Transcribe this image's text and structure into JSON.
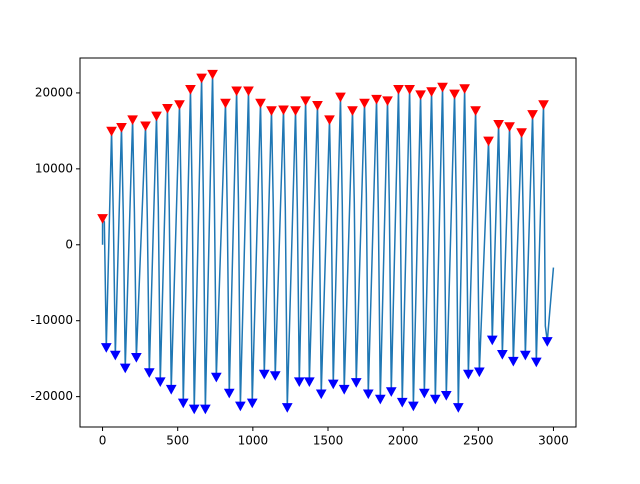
{
  "chart_data": {
    "type": "line",
    "xlim": [
      -150,
      3150
    ],
    "ylim": [
      -24000,
      24600
    ],
    "xticks": [
      0,
      500,
      1000,
      1500,
      2000,
      2500,
      3000
    ],
    "yticks": [
      -20000,
      -10000,
      0,
      10000,
      20000
    ],
    "series": [
      {
        "type": "line",
        "color": "#1f77b4",
        "x": [
          0,
          0,
          12,
          25,
          60,
          72,
          85,
          126,
          138,
          151,
          200,
          212,
          225,
          286,
          298,
          311,
          359,
          371,
          384,
          432,
          444,
          457,
          512,
          524,
          537,
          585,
          597,
          610,
          659,
          671,
          684,
          732,
          744,
          757,
          818,
          830,
          843,
          892,
          904,
          917,
          971,
          983,
          996,
          1051,
          1063,
          1076,
          1124,
          1136,
          1149,
          1204,
          1216,
          1229,
          1284,
          1296,
          1309,
          1351,
          1363,
          1376,
          1430,
          1442,
          1455,
          1510,
          1522,
          1535,
          1583,
          1595,
          1608,
          1663,
          1675,
          1688,
          1743,
          1755,
          1768,
          1823,
          1835,
          1848,
          1896,
          1908,
          1921,
          1969,
          1981,
          1994,
          2043,
          2055,
          2068,
          2116,
          2128,
          2141,
          2189,
          2201,
          2214,
          2262,
          2274,
          2287,
          2342,
          2354,
          2367,
          2409,
          2421,
          2434,
          2482,
          2494,
          2507,
          2568,
          2580,
          2593,
          2635,
          2647,
          2660,
          2708,
          2720,
          2733,
          2788,
          2800,
          2813,
          2861,
          2873,
          2886,
          2934,
          2946,
          2959,
          3000
        ],
        "values": [
          0,
          3500,
          3000,
          -13500,
          15000,
          3500,
          -14500,
          15500,
          4000,
          -16200,
          16500,
          4300,
          -14800,
          15700,
          3300,
          -16800,
          17000,
          5000,
          -18000,
          18000,
          4500,
          -19000,
          18500,
          5000,
          -20800,
          20500,
          5500,
          -21600,
          22000,
          5800,
          -21600,
          22500,
          6000,
          -17400,
          18700,
          4200,
          -19500,
          20300,
          6000,
          -21200,
          20300,
          4200,
          -20800,
          18700,
          5500,
          -17000,
          17700,
          5000,
          -17200,
          17800,
          4800,
          -21400,
          17700,
          4700,
          -18000,
          19000,
          5000,
          -18000,
          18400,
          4700,
          -19600,
          16500,
          4600,
          -18300,
          19500,
          5300,
          -19000,
          17700,
          5500,
          -18100,
          18700,
          6800,
          -19600,
          19200,
          4300,
          -20300,
          19000,
          5500,
          -19300,
          20500,
          5000,
          -20700,
          20500,
          4800,
          -21200,
          19800,
          5000,
          -19500,
          20200,
          6000,
          -20300,
          20800,
          4800,
          -19800,
          19900,
          5000,
          -21400,
          20600,
          4500,
          -17000,
          17700,
          4200,
          -16700,
          13700,
          3500,
          -12500,
          15900,
          4000,
          -14400,
          15600,
          3000,
          -15300,
          14800,
          2500,
          -14500,
          17200,
          4600,
          -15400,
          18500,
          -10700,
          -12700,
          -3000
        ]
      },
      {
        "type": "scatter",
        "marker": "v",
        "color": "#ff0000",
        "x": [
          0,
          60,
          126,
          200,
          286,
          359,
          432,
          512,
          585,
          659,
          732,
          818,
          892,
          971,
          1051,
          1124,
          1204,
          1284,
          1351,
          1430,
          1510,
          1583,
          1663,
          1743,
          1823,
          1896,
          1969,
          2043,
          2116,
          2189,
          2262,
          2342,
          2409,
          2482,
          2568,
          2635,
          2708,
          2788,
          2861,
          2934
        ],
        "values": [
          3500,
          15000,
          15500,
          16500,
          15700,
          17000,
          18000,
          18500,
          20500,
          22000,
          22500,
          18700,
          20300,
          20300,
          18700,
          17700,
          17800,
          17700,
          19000,
          18400,
          16500,
          19500,
          17700,
          18700,
          19200,
          19000,
          20500,
          20500,
          19800,
          20200,
          20800,
          19900,
          20600,
          17700,
          13700,
          15900,
          15600,
          14800,
          17200,
          18500
        ]
      },
      {
        "type": "scatter",
        "marker": "v",
        "color": "#0000ff",
        "x": [
          25,
          85,
          151,
          225,
          311,
          384,
          457,
          537,
          610,
          684,
          757,
          843,
          917,
          996,
          1076,
          1149,
          1229,
          1309,
          1376,
          1455,
          1535,
          1608,
          1688,
          1768,
          1848,
          1921,
          1994,
          2068,
          2141,
          2214,
          2287,
          2367,
          2434,
          2507,
          2593,
          2660,
          2733,
          2813,
          2886,
          2959
        ],
        "values": [
          -13500,
          -14500,
          -16200,
          -14800,
          -16800,
          -18000,
          -19000,
          -20800,
          -21600,
          -21600,
          -17400,
          -19500,
          -21200,
          -20800,
          -17000,
          -17200,
          -21400,
          -18000,
          -18000,
          -19600,
          -18300,
          -19000,
          -18100,
          -19600,
          -20300,
          -19300,
          -20700,
          -21200,
          -19500,
          -20300,
          -19800,
          -21400,
          -17000,
          -16700,
          -12500,
          -14400,
          -15300,
          -14500,
          -15400,
          -12700
        ]
      }
    ]
  }
}
